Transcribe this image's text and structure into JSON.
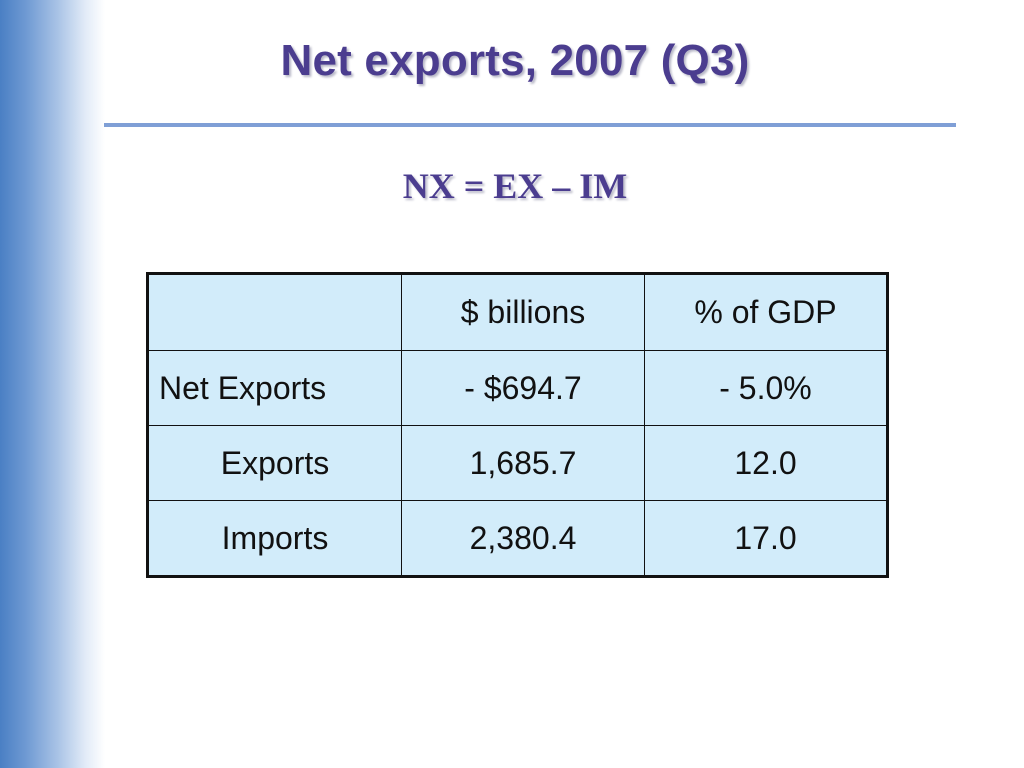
{
  "slide": {
    "title": "Net exports, 2007 (Q3)",
    "formula": "NX = EX – IM"
  },
  "table": {
    "columns": [
      "",
      "$ billions",
      "% of GDP"
    ],
    "rows": [
      {
        "label": "Net Exports",
        "billions": "- $694.7",
        "pct_gdp": "- 5.0%"
      },
      {
        "label": "Exports",
        "billions": "1,685.7",
        "pct_gdp": "12.0"
      },
      {
        "label": "Imports",
        "billions": "2,380.4",
        "pct_gdp": "17.0"
      }
    ]
  },
  "colors": {
    "title": "#4b3d8f",
    "rule": "#7f9fd6",
    "cell_fill": "#d2ecfa",
    "side_gradient": "#4a7fc4"
  }
}
